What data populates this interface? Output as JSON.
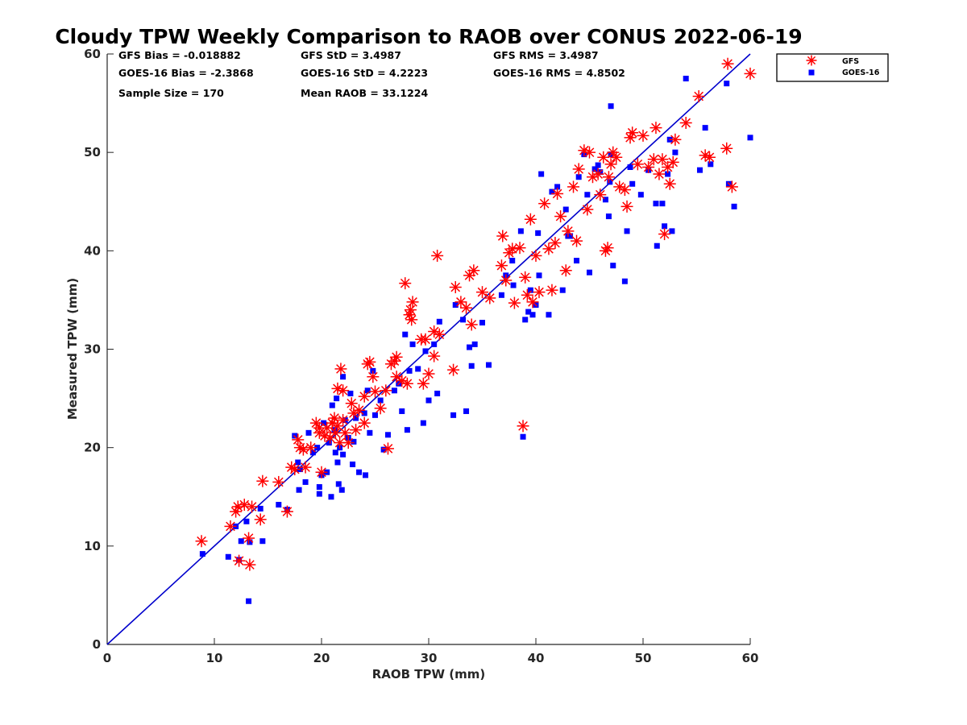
{
  "chart_data": {
    "type": "scatter",
    "title": "Cloudy TPW Weekly Comparison to RAOB over CONUS 2022-06-19",
    "xlabel": "RAOB TPW (mm)",
    "ylabel": "Measured TPW (mm)",
    "xlim": [
      0,
      60
    ],
    "ylim": [
      0,
      60
    ],
    "xticks": [
      "0",
      "10",
      "20",
      "30",
      "40",
      "50",
      "60"
    ],
    "yticks": [
      "0",
      "10",
      "20",
      "30",
      "40",
      "50",
      "60"
    ],
    "grid": false,
    "legend_position": "top-right, outside plot",
    "stats": {
      "gfs_bias": "GFS Bias = -0.018882",
      "gfs_std": "GFS StD = 3.4987",
      "gfs_rms": "GFS RMS = 3.4987",
      "goes_bias": "GOES-16 Bias = -2.3868",
      "goes_std": "GOES-16 StD = 4.2223",
      "goes_rms": "GOES-16 RMS = 4.8502",
      "sample_size": "Sample Size = 170",
      "mean_raob": "Mean RAOB = 33.1224"
    },
    "reference_line": {
      "from": [
        0,
        0
      ],
      "to": [
        60,
        60
      ],
      "color": "#0000cc"
    },
    "series": [
      {
        "name": "GFS",
        "marker": "asterisk",
        "color": "#ff0000",
        "points": [
          [
            8.8,
            10.5
          ],
          [
            11.5,
            12.0
          ],
          [
            12.0,
            13.5
          ],
          [
            12.2,
            14.0
          ],
          [
            12.3,
            8.5
          ],
          [
            12.8,
            14.2
          ],
          [
            13.2,
            10.8
          ],
          [
            13.3,
            8.1
          ],
          [
            13.5,
            14.0
          ],
          [
            14.3,
            12.7
          ],
          [
            14.5,
            16.6
          ],
          [
            16.0,
            16.5
          ],
          [
            16.8,
            13.5
          ],
          [
            17.2,
            18.0
          ],
          [
            17.5,
            17.8
          ],
          [
            17.8,
            20.8
          ],
          [
            18.0,
            20.0
          ],
          [
            18.3,
            19.8
          ],
          [
            18.5,
            18.0
          ],
          [
            19.0,
            20.0
          ],
          [
            19.5,
            22.5
          ],
          [
            19.8,
            22.0
          ],
          [
            19.8,
            21.5
          ],
          [
            20.0,
            17.5
          ],
          [
            20.3,
            21.2
          ],
          [
            20.5,
            22.0
          ],
          [
            20.8,
            21.0
          ],
          [
            21.0,
            22.5
          ],
          [
            21.2,
            23.0
          ],
          [
            21.3,
            21.5
          ],
          [
            21.5,
            22.2
          ],
          [
            21.5,
            26.0
          ],
          [
            21.7,
            20.5
          ],
          [
            21.8,
            28.0
          ],
          [
            22.0,
            22.8
          ],
          [
            22.0,
            25.8
          ],
          [
            22.2,
            21.5
          ],
          [
            22.5,
            20.5
          ],
          [
            22.8,
            24.5
          ],
          [
            23.0,
            23.5
          ],
          [
            23.2,
            21.8
          ],
          [
            23.5,
            23.8
          ],
          [
            24.0,
            25.2
          ],
          [
            24.0,
            22.5
          ],
          [
            24.3,
            28.5
          ],
          [
            24.5,
            28.7
          ],
          [
            24.8,
            27.2
          ],
          [
            25.0,
            25.7
          ],
          [
            25.5,
            24.0
          ],
          [
            26.0,
            25.8
          ],
          [
            26.2,
            19.9
          ],
          [
            26.5,
            28.5
          ],
          [
            26.8,
            28.8
          ],
          [
            27.0,
            29.2
          ],
          [
            27.0,
            27.2
          ],
          [
            27.5,
            26.8
          ],
          [
            27.8,
            36.7
          ],
          [
            28.0,
            26.5
          ],
          [
            28.2,
            33.5
          ],
          [
            28.3,
            34.0
          ],
          [
            28.4,
            33.0
          ],
          [
            28.5,
            34.8
          ],
          [
            29.3,
            31.0
          ],
          [
            29.5,
            26.5
          ],
          [
            29.7,
            31.0
          ],
          [
            30.0,
            27.5
          ],
          [
            30.5,
            31.8
          ],
          [
            30.5,
            29.3
          ],
          [
            30.8,
            39.5
          ],
          [
            31.0,
            31.5
          ],
          [
            32.3,
            27.9
          ],
          [
            32.5,
            36.3
          ],
          [
            33.0,
            34.8
          ],
          [
            33.5,
            34.2
          ],
          [
            33.8,
            37.5
          ],
          [
            34.0,
            32.5
          ],
          [
            34.2,
            38.0
          ],
          [
            35.0,
            35.8
          ],
          [
            35.7,
            35.2
          ],
          [
            36.8,
            38.5
          ],
          [
            36.9,
            41.5
          ],
          [
            37.2,
            37.0
          ],
          [
            37.5,
            39.8
          ],
          [
            37.8,
            40.2
          ],
          [
            38.0,
            34.7
          ],
          [
            38.5,
            40.3
          ],
          [
            38.8,
            22.2
          ],
          [
            39.0,
            37.3
          ],
          [
            39.2,
            35.5
          ],
          [
            39.5,
            43.2
          ],
          [
            39.7,
            34.8
          ],
          [
            40.0,
            39.5
          ],
          [
            40.3,
            35.8
          ],
          [
            40.8,
            44.8
          ],
          [
            41.2,
            40.2
          ],
          [
            41.5,
            36.0
          ],
          [
            41.8,
            40.8
          ],
          [
            42.0,
            45.8
          ],
          [
            42.3,
            43.5
          ],
          [
            42.8,
            38.0
          ],
          [
            43.0,
            42.0
          ],
          [
            43.5,
            46.5
          ],
          [
            43.8,
            41.0
          ],
          [
            44.0,
            48.3
          ],
          [
            44.5,
            50.2
          ],
          [
            44.8,
            44.2
          ],
          [
            45.0,
            50.0
          ],
          [
            45.3,
            47.5
          ],
          [
            45.8,
            47.8
          ],
          [
            46.0,
            45.7
          ],
          [
            46.3,
            49.5
          ],
          [
            46.5,
            40.0
          ],
          [
            46.7,
            40.3
          ],
          [
            46.8,
            47.5
          ],
          [
            47.0,
            48.8
          ],
          [
            47.2,
            50.0
          ],
          [
            47.5,
            49.5
          ],
          [
            47.8,
            46.5
          ],
          [
            48.3,
            46.2
          ],
          [
            48.5,
            44.5
          ],
          [
            48.8,
            51.5
          ],
          [
            49.0,
            52.0
          ],
          [
            49.5,
            48.8
          ],
          [
            50.0,
            51.7
          ],
          [
            50.5,
            48.5
          ],
          [
            51.0,
            49.3
          ],
          [
            51.2,
            52.5
          ],
          [
            51.5,
            47.8
          ],
          [
            51.8,
            49.3
          ],
          [
            52.0,
            41.7
          ],
          [
            52.3,
            48.5
          ],
          [
            52.5,
            46.8
          ],
          [
            52.8,
            49.0
          ],
          [
            53.0,
            51.3
          ],
          [
            54.0,
            53.0
          ],
          [
            55.2,
            55.7
          ],
          [
            55.8,
            49.7
          ],
          [
            56.2,
            49.5
          ],
          [
            57.8,
            50.4
          ],
          [
            57.9,
            59.0
          ],
          [
            58.3,
            46.5
          ],
          [
            60.0,
            58.0
          ]
        ]
      },
      {
        "name": "GOES-16",
        "marker": "square",
        "color": "#0000ff",
        "points": [
          [
            8.9,
            9.2
          ],
          [
            11.3,
            8.9
          ],
          [
            12.0,
            12.0
          ],
          [
            12.3,
            8.6
          ],
          [
            12.5,
            10.5
          ],
          [
            13.0,
            12.5
          ],
          [
            13.2,
            4.4
          ],
          [
            13.3,
            10.4
          ],
          [
            14.3,
            13.8
          ],
          [
            14.5,
            10.5
          ],
          [
            16.0,
            14.2
          ],
          [
            16.8,
            13.7
          ],
          [
            17.5,
            21.2
          ],
          [
            17.8,
            18.5
          ],
          [
            17.9,
            15.7
          ],
          [
            18.0,
            17.8
          ],
          [
            18.5,
            16.5
          ],
          [
            18.8,
            21.5
          ],
          [
            19.2,
            19.5
          ],
          [
            19.6,
            20.0
          ],
          [
            19.8,
            16.0
          ],
          [
            19.8,
            15.3
          ],
          [
            20.0,
            17.2
          ],
          [
            20.2,
            22.5
          ],
          [
            20.5,
            17.5
          ],
          [
            20.7,
            20.5
          ],
          [
            20.9,
            15.0
          ],
          [
            21.0,
            24.3
          ],
          [
            21.2,
            21.8
          ],
          [
            21.3,
            19.5
          ],
          [
            21.4,
            25.0
          ],
          [
            21.5,
            18.5
          ],
          [
            21.6,
            16.3
          ],
          [
            21.7,
            20.0
          ],
          [
            21.9,
            15.7
          ],
          [
            22.0,
            27.2
          ],
          [
            22.0,
            19.3
          ],
          [
            22.2,
            22.8
          ],
          [
            22.5,
            21.0
          ],
          [
            22.7,
            25.5
          ],
          [
            22.9,
            18.3
          ],
          [
            23.0,
            20.6
          ],
          [
            23.2,
            23.0
          ],
          [
            23.5,
            17.5
          ],
          [
            24.0,
            23.5
          ],
          [
            24.1,
            17.2
          ],
          [
            24.3,
            25.8
          ],
          [
            24.5,
            21.5
          ],
          [
            24.8,
            27.8
          ],
          [
            25.0,
            23.3
          ],
          [
            25.5,
            24.8
          ],
          [
            25.8,
            19.8
          ],
          [
            26.2,
            21.3
          ],
          [
            26.8,
            25.8
          ],
          [
            27.2,
            26.5
          ],
          [
            27.5,
            23.7
          ],
          [
            27.8,
            31.5
          ],
          [
            28.0,
            21.8
          ],
          [
            28.2,
            27.8
          ],
          [
            28.5,
            30.5
          ],
          [
            29.0,
            28.0
          ],
          [
            29.5,
            22.5
          ],
          [
            29.7,
            29.8
          ],
          [
            30.0,
            24.8
          ],
          [
            30.5,
            30.5
          ],
          [
            30.8,
            25.5
          ],
          [
            31.0,
            32.8
          ],
          [
            32.3,
            23.3
          ],
          [
            32.5,
            34.5
          ],
          [
            33.2,
            33.0
          ],
          [
            33.5,
            23.7
          ],
          [
            33.8,
            30.2
          ],
          [
            34.0,
            28.3
          ],
          [
            34.3,
            30.5
          ],
          [
            35.0,
            32.7
          ],
          [
            35.6,
            28.4
          ],
          [
            36.8,
            35.5
          ],
          [
            37.2,
            37.5
          ],
          [
            37.8,
            39.0
          ],
          [
            37.9,
            36.5
          ],
          [
            38.6,
            42.0
          ],
          [
            38.8,
            21.1
          ],
          [
            39.0,
            33.0
          ],
          [
            39.3,
            33.8
          ],
          [
            39.5,
            36.0
          ],
          [
            39.7,
            33.5
          ],
          [
            40.0,
            34.5
          ],
          [
            40.2,
            41.8
          ],
          [
            40.3,
            37.5
          ],
          [
            40.5,
            47.8
          ],
          [
            41.2,
            33.5
          ],
          [
            41.5,
            46.0
          ],
          [
            42.0,
            46.5
          ],
          [
            42.5,
            36.0
          ],
          [
            42.8,
            44.2
          ],
          [
            43.0,
            41.5
          ],
          [
            43.2,
            41.5
          ],
          [
            43.8,
            39.0
          ],
          [
            44.0,
            47.5
          ],
          [
            44.5,
            49.8
          ],
          [
            44.8,
            45.7
          ],
          [
            45.0,
            37.8
          ],
          [
            45.5,
            48.3
          ],
          [
            45.8,
            48.7
          ],
          [
            46.0,
            48.0
          ],
          [
            46.5,
            45.2
          ],
          [
            46.8,
            43.5
          ],
          [
            46.9,
            47.0
          ],
          [
            47.0,
            54.7
          ],
          [
            47.0,
            49.8
          ],
          [
            47.2,
            38.5
          ],
          [
            48.3,
            36.9
          ],
          [
            48.5,
            42.0
          ],
          [
            48.8,
            48.5
          ],
          [
            49.0,
            46.8
          ],
          [
            49.8,
            45.7
          ],
          [
            50.5,
            48.2
          ],
          [
            51.2,
            44.8
          ],
          [
            51.3,
            40.5
          ],
          [
            51.8,
            44.8
          ],
          [
            52.0,
            42.5
          ],
          [
            52.3,
            47.8
          ],
          [
            52.5,
            51.3
          ],
          [
            52.7,
            42.0
          ],
          [
            53.0,
            50.0
          ],
          [
            54.0,
            57.5
          ],
          [
            55.3,
            48.2
          ],
          [
            55.8,
            52.5
          ],
          [
            56.3,
            48.8
          ],
          [
            57.8,
            57.0
          ],
          [
            58.0,
            46.8
          ],
          [
            58.5,
            44.5
          ],
          [
            60.0,
            51.5
          ]
        ]
      }
    ]
  }
}
